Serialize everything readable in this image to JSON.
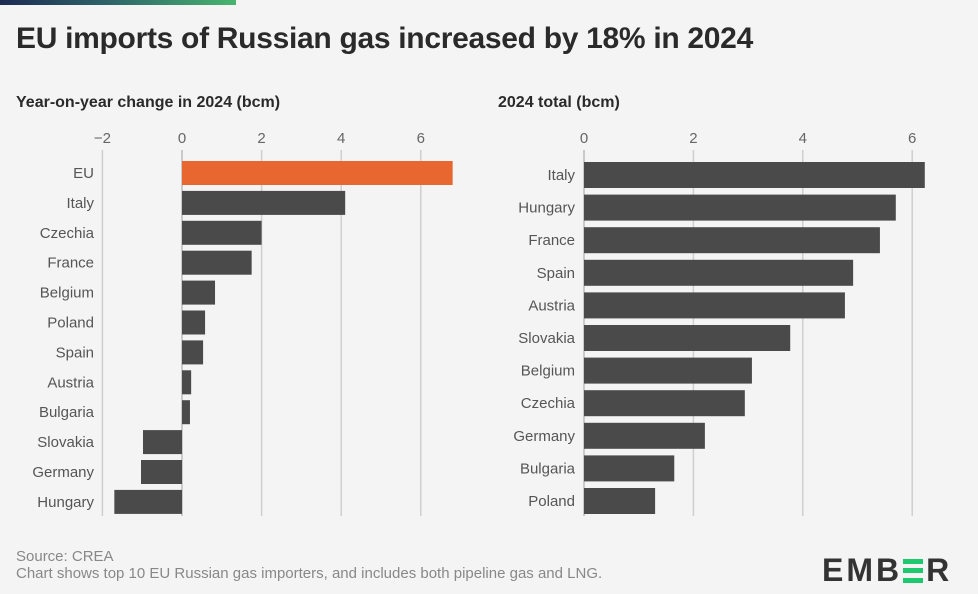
{
  "title": "EU imports of Russian gas increased by 18% in 2024",
  "footer": {
    "source": "Source: CREA",
    "note": "Chart shows top 10 EU Russian gas importers, and includes both pipeline gas and LNG."
  },
  "logo": "EMBER",
  "colors": {
    "highlight": "#e8662f",
    "bar": "#4a4a4a",
    "grid": "#cfcfcf",
    "logo_accent": "#1ec86e"
  },
  "chart_data": [
    {
      "type": "bar",
      "orientation": "horizontal",
      "title": "Year-on-year change in 2024 (bcm)",
      "categories": [
        "EU",
        "Italy",
        "Czechia",
        "France",
        "Belgium",
        "Poland",
        "Spain",
        "Austria",
        "Bulgaria",
        "Slovakia",
        "Germany",
        "Hungary"
      ],
      "values": [
        6.8,
        4.1,
        2.0,
        1.75,
        0.83,
        0.58,
        0.53,
        0.23,
        0.2,
        -0.98,
        -1.03,
        -1.7
      ],
      "highlight": "EU",
      "xlim": [
        -2,
        7
      ],
      "ticks": [
        -2,
        0,
        2,
        4,
        6
      ],
      "tick_labels": [
        "−2",
        "0",
        "2",
        "4",
        "6"
      ],
      "grid": true
    },
    {
      "type": "bar",
      "orientation": "horizontal",
      "title": "2024 total (bcm)",
      "categories": [
        "Italy",
        "Hungary",
        "France",
        "Spain",
        "Austria",
        "Slovakia",
        "Belgium",
        "Czechia",
        "Germany",
        "Bulgaria",
        "Poland"
      ],
      "values": [
        6.23,
        5.7,
        5.41,
        4.92,
        4.77,
        3.77,
        3.07,
        2.94,
        2.21,
        1.65,
        1.3
      ],
      "xlim": [
        0,
        6.5
      ],
      "ticks": [
        0,
        2,
        4,
        6
      ],
      "tick_labels": [
        "0",
        "2",
        "4",
        "6"
      ],
      "grid": true
    }
  ]
}
